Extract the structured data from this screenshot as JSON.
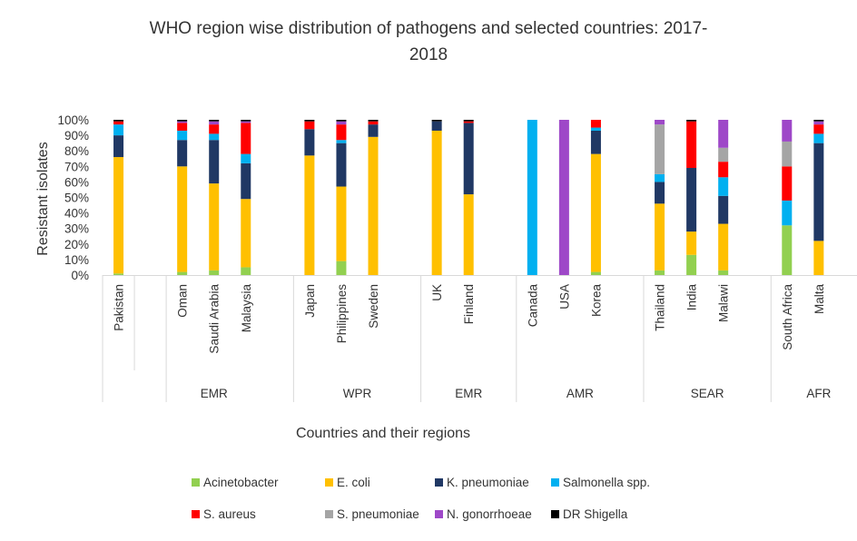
{
  "chart_data": {
    "type": "bar",
    "stacked": true,
    "title_lines": [
      "WHO region wise distribution of pathogens and selected countries:  2017-",
      "2018"
    ],
    "xlabel": "Countries and their regions",
    "ylabel": "Resistant isolates",
    "ylim": [
      0,
      100
    ],
    "y_ticks": [
      "0%",
      "10%",
      "20%",
      "30%",
      "40%",
      "50%",
      "60%",
      "70%",
      "80%",
      "90%",
      "100%"
    ],
    "grid": false,
    "categories": [
      "Pakistan",
      "Oman",
      "Saudi Arabia",
      "Malaysia",
      "Japan",
      "Philippines",
      "Sweden",
      "UK",
      "Finland",
      "Canada",
      "USA",
      "Korea",
      "Thailand",
      "India",
      "Malawi",
      "South Africa",
      "Malta"
    ],
    "groups": [
      {
        "label": "",
        "categories": [
          "Pakistan"
        ]
      },
      {
        "label": "EMR",
        "categories": [
          "Oman",
          "Saudi Arabia",
          "Malaysia"
        ]
      },
      {
        "label": "WPR",
        "categories": [
          "Japan",
          "Philippines",
          "Sweden"
        ]
      },
      {
        "label": "EMR",
        "categories": [
          "UK",
          "Finland"
        ]
      },
      {
        "label": "AMR",
        "categories": [
          "Canada",
          "USA",
          "Korea"
        ]
      },
      {
        "label": "SEAR",
        "categories": [
          "Thailand",
          "India",
          "Malawi"
        ]
      },
      {
        "label": "AFR",
        "categories": [
          "South Africa",
          "Malta"
        ]
      },
      {
        "label": "",
        "categories": []
      }
    ],
    "series": [
      {
        "name": "Acinetobacter",
        "color": "#92d050",
        "values": [
          1,
          2,
          3,
          5,
          0,
          9,
          0,
          0,
          0,
          0,
          0,
          2,
          3,
          13,
          3,
          32,
          0
        ]
      },
      {
        "name": "E. coli",
        "color": "#ffc000",
        "values": [
          75,
          68,
          56,
          44,
          77,
          48,
          89,
          93,
          52,
          0,
          0,
          76,
          43,
          15,
          30,
          0,
          22
        ]
      },
      {
        "name": "K. pneumoniae",
        "color": "#203864",
        "values": [
          14,
          17,
          28,
          23,
          17,
          28,
          8,
          6,
          46,
          0,
          0,
          15,
          14,
          41,
          18,
          0,
          63
        ]
      },
      {
        "name": "Salmonella spp.",
        "color": "#00b0f0",
        "values": [
          7,
          6,
          4,
          6,
          0,
          2,
          0,
          0,
          0,
          100,
          0,
          2,
          5,
          0,
          12,
          16,
          6
        ]
      },
      {
        "name": "S. aureus",
        "color": "#ff0000",
        "values": [
          2,
          5,
          6,
          20,
          5,
          10,
          2,
          0,
          1,
          0,
          0,
          5,
          0,
          30,
          10,
          22,
          6
        ]
      },
      {
        "name": "S. pneumoniae",
        "color": "#a5a5a5",
        "values": [
          0,
          0,
          0,
          0,
          0,
          0,
          0,
          0,
          0,
          0,
          0,
          0,
          32,
          0,
          9,
          16,
          0
        ]
      },
      {
        "name": "N. gonorrhoeae",
        "color": "#9e48c8",
        "values": [
          0,
          1,
          2,
          1,
          0,
          2,
          0,
          0,
          0,
          0,
          100,
          0,
          3,
          0,
          18,
          14,
          2
        ]
      },
      {
        "name": "DR Shigella",
        "color": "#000000",
        "values": [
          1,
          1,
          1,
          1,
          1,
          1,
          1,
          1,
          1,
          0,
          0,
          0,
          0,
          1,
          0,
          0,
          1
        ]
      }
    ],
    "legend_position": "bottom"
  }
}
